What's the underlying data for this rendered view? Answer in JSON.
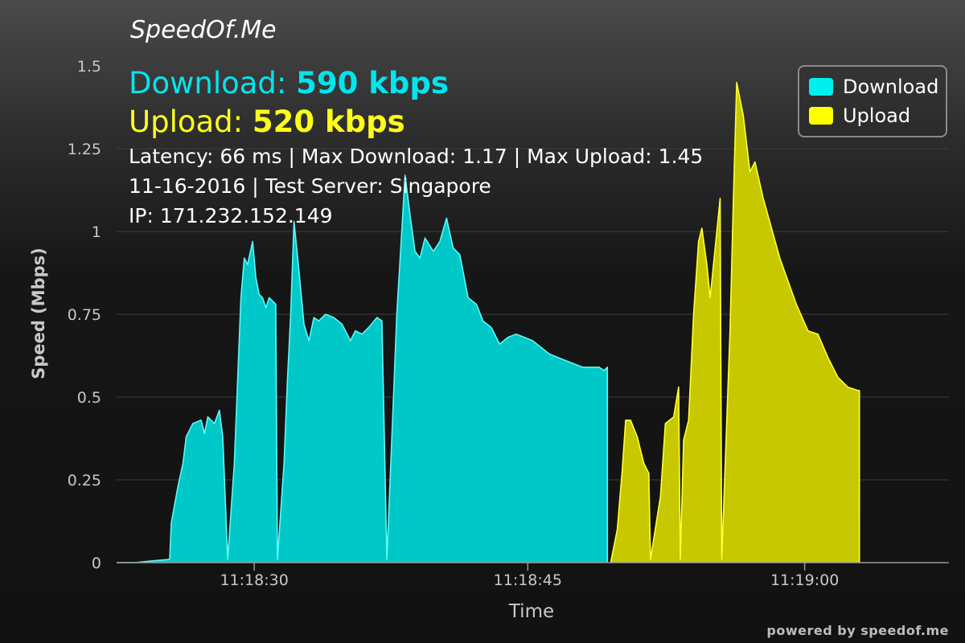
{
  "brand": "SpeedOf.Me",
  "summary": {
    "download_label": "Download:",
    "download_value": "590 kbps",
    "upload_label": "Upload:",
    "upload_value": "520 kbps",
    "latency_line": "Latency: 66 ms | Max Download: 1.17 | Max Upload: 1.45",
    "date_line": "11-16-2016 | Test Server: Singapore",
    "ip_line": "IP: 171.232.152.149"
  },
  "footer": {
    "credit": "powered by speedof.me"
  },
  "colors": {
    "download_fill": "#00c8c8",
    "download_stroke": "#5ff7f7",
    "upload_fill": "#c8c800",
    "upload_stroke": "#ffff33",
    "download_swatch": "#00f0f0",
    "upload_swatch": "#ffff00",
    "grid": "#3c3c3c",
    "tick_text": "#c8c8c8"
  },
  "chart_data": {
    "type": "area",
    "xlabel": "Time",
    "ylabel": "Speed (Mbps)",
    "xlim": [
      20.2,
      70.4
    ],
    "ylim": [
      0,
      1.5
    ],
    "x_ticks": [
      {
        "value": 28.5,
        "label": "11:18:30"
      },
      {
        "value": 45.0,
        "label": "11:18:45"
      },
      {
        "value": 61.7,
        "label": "11:19:00"
      }
    ],
    "y_ticks": [
      {
        "value": 0,
        "label": "0"
      },
      {
        "value": 0.25,
        "label": "0.25"
      },
      {
        "value": 0.5,
        "label": "0.5"
      },
      {
        "value": 0.75,
        "label": "0.75"
      },
      {
        "value": 1,
        "label": "1"
      },
      {
        "value": 1.25,
        "label": "1.25"
      },
      {
        "value": 1.5,
        "label": "1.5"
      }
    ],
    "grid": true,
    "legend_position": "top-right",
    "series": [
      {
        "name": "Download",
        "points": [
          [
            20.2,
            0
          ],
          [
            21.3,
            0
          ],
          [
            22.3,
            0.005
          ],
          [
            23.4,
            0.01
          ],
          [
            23.5,
            0.12
          ],
          [
            23.9,
            0.23
          ],
          [
            24.2,
            0.3
          ],
          [
            24.4,
            0.38
          ],
          [
            24.8,
            0.42
          ],
          [
            25.3,
            0.43
          ],
          [
            25.5,
            0.39
          ],
          [
            25.7,
            0.44
          ],
          [
            26.1,
            0.42
          ],
          [
            26.4,
            0.46
          ],
          [
            26.6,
            0.38
          ],
          [
            26.9,
            0.01
          ],
          [
            27.3,
            0.3
          ],
          [
            27.5,
            0.55
          ],
          [
            27.7,
            0.8
          ],
          [
            27.9,
            0.92
          ],
          [
            28.1,
            0.9
          ],
          [
            28.4,
            0.97
          ],
          [
            28.6,
            0.86
          ],
          [
            28.8,
            0.81
          ],
          [
            29.0,
            0.8
          ],
          [
            29.2,
            0.77
          ],
          [
            29.4,
            0.8
          ],
          [
            29.6,
            0.79
          ],
          [
            29.8,
            0.78
          ],
          [
            29.9,
            0.01
          ],
          [
            30.3,
            0.3
          ],
          [
            30.5,
            0.55
          ],
          [
            30.7,
            0.75
          ],
          [
            30.9,
            1.03
          ],
          [
            31.2,
            0.88
          ],
          [
            31.5,
            0.72
          ],
          [
            31.8,
            0.67
          ],
          [
            32.1,
            0.74
          ],
          [
            32.4,
            0.73
          ],
          [
            32.8,
            0.75
          ],
          [
            33.3,
            0.74
          ],
          [
            33.8,
            0.72
          ],
          [
            34.3,
            0.67
          ],
          [
            34.6,
            0.7
          ],
          [
            35.0,
            0.69
          ],
          [
            35.4,
            0.71
          ],
          [
            35.9,
            0.74
          ],
          [
            36.2,
            0.73
          ],
          [
            36.5,
            0.01
          ],
          [
            36.9,
            0.5
          ],
          [
            37.1,
            0.75
          ],
          [
            37.4,
            1.0
          ],
          [
            37.6,
            1.17
          ],
          [
            37.9,
            1.05
          ],
          [
            38.2,
            0.94
          ],
          [
            38.5,
            0.92
          ],
          [
            38.8,
            0.98
          ],
          [
            39.3,
            0.94
          ],
          [
            39.7,
            0.97
          ],
          [
            40.1,
            1.04
          ],
          [
            40.5,
            0.95
          ],
          [
            40.9,
            0.93
          ],
          [
            41.4,
            0.8
          ],
          [
            41.9,
            0.78
          ],
          [
            42.3,
            0.73
          ],
          [
            42.8,
            0.71
          ],
          [
            43.3,
            0.66
          ],
          [
            43.8,
            0.68
          ],
          [
            44.3,
            0.69
          ],
          [
            44.8,
            0.68
          ],
          [
            45.3,
            0.67
          ],
          [
            45.8,
            0.65
          ],
          [
            46.3,
            0.63
          ],
          [
            46.8,
            0.62
          ],
          [
            47.3,
            0.61
          ],
          [
            47.8,
            0.6
          ],
          [
            48.3,
            0.59
          ],
          [
            48.8,
            0.59
          ],
          [
            49.3,
            0.59
          ],
          [
            49.6,
            0.58
          ],
          [
            49.8,
            0.59
          ],
          [
            49.8,
            0
          ]
        ]
      },
      {
        "name": "Upload",
        "points": [
          [
            50.0,
            0
          ],
          [
            50.4,
            0.1
          ],
          [
            50.7,
            0.28
          ],
          [
            50.9,
            0.43
          ],
          [
            51.2,
            0.43
          ],
          [
            51.6,
            0.38
          ],
          [
            52.0,
            0.3
          ],
          [
            52.3,
            0.27
          ],
          [
            52.4,
            0.01
          ],
          [
            53.0,
            0.2
          ],
          [
            53.3,
            0.42
          ],
          [
            53.8,
            0.44
          ],
          [
            54.1,
            0.53
          ],
          [
            54.2,
            0.01
          ],
          [
            54.4,
            0.37
          ],
          [
            54.7,
            0.43
          ],
          [
            55.0,
            0.75
          ],
          [
            55.3,
            0.97
          ],
          [
            55.5,
            1.01
          ],
          [
            55.8,
            0.9
          ],
          [
            56.0,
            0.8
          ],
          [
            56.3,
            0.95
          ],
          [
            56.6,
            1.1
          ],
          [
            56.7,
            0.01
          ],
          [
            57.2,
            0.7
          ],
          [
            57.4,
            1.1
          ],
          [
            57.6,
            1.45
          ],
          [
            58.0,
            1.35
          ],
          [
            58.4,
            1.18
          ],
          [
            58.7,
            1.21
          ],
          [
            59.2,
            1.1
          ],
          [
            60.2,
            0.92
          ],
          [
            61.2,
            0.78
          ],
          [
            61.9,
            0.7
          ],
          [
            62.5,
            0.69
          ],
          [
            63.1,
            0.62
          ],
          [
            63.7,
            0.56
          ],
          [
            64.3,
            0.53
          ],
          [
            64.9,
            0.52
          ],
          [
            65.0,
            0.52
          ],
          [
            65.0,
            0
          ]
        ]
      }
    ]
  }
}
